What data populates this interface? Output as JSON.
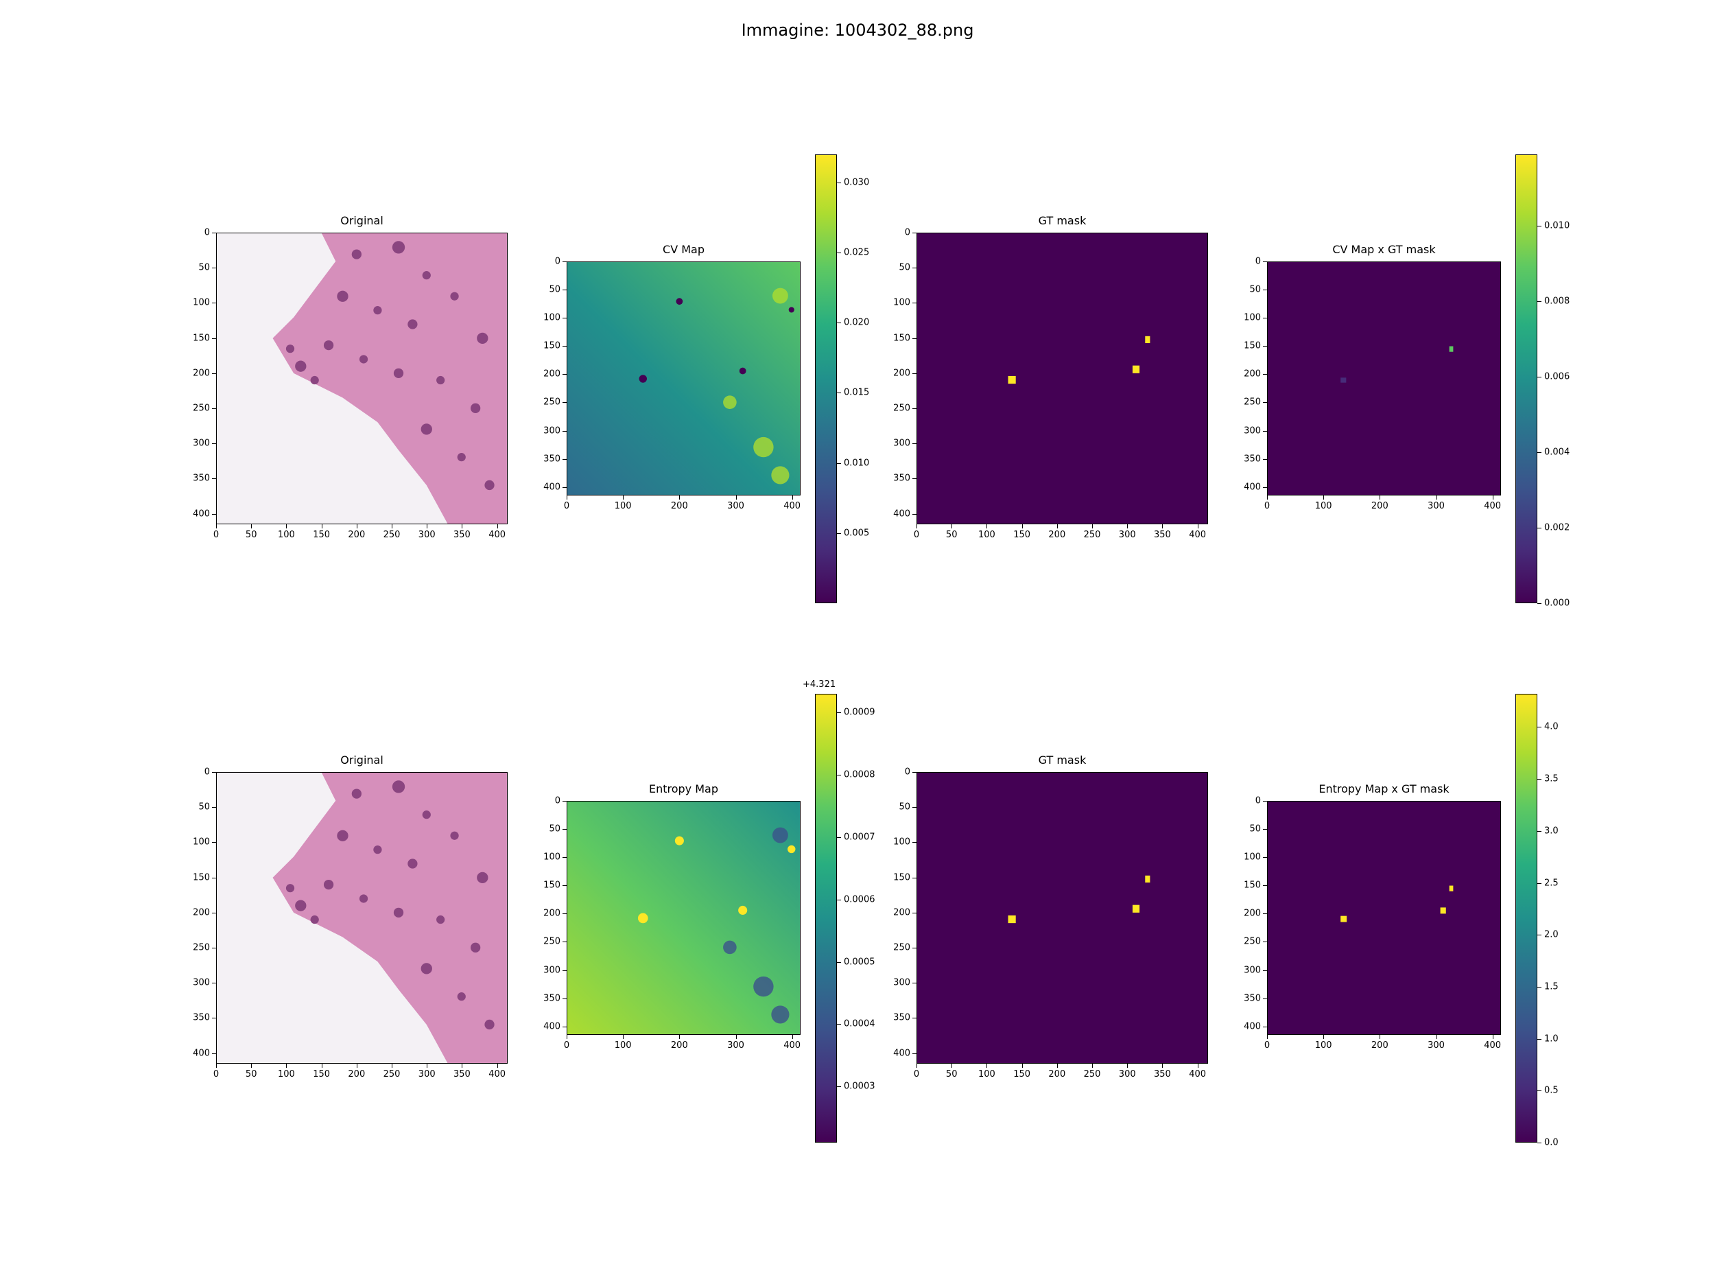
{
  "figure_title": "Immagine: 1004302_88.png",
  "colors": {
    "viridis_low": "#440154",
    "viridis_high": "#fde725"
  },
  "panels": {
    "r1c1": {
      "title": "Original"
    },
    "r1c2": {
      "title": "CV Map"
    },
    "r1c3": {
      "title": "GT mask"
    },
    "r1c4": {
      "title": "CV Map x GT mask"
    },
    "r2c1": {
      "title": "Original"
    },
    "r2c2": {
      "title": "Entropy Map"
    },
    "r2c3": {
      "title": "GT mask"
    },
    "r2c4": {
      "title": "Entropy Map x GT mask"
    }
  },
  "axis_ticks": {
    "original_x": [
      "0",
      "50",
      "100",
      "150",
      "200",
      "250",
      "300",
      "350",
      "400"
    ],
    "original_y": [
      "0",
      "50",
      "100",
      "150",
      "200",
      "250",
      "300",
      "350",
      "400"
    ],
    "map_x": [
      "0",
      "100",
      "200",
      "300",
      "400"
    ],
    "map_y": [
      "0",
      "50",
      "100",
      "150",
      "200",
      "250",
      "300",
      "350",
      "400"
    ]
  },
  "colorbars": {
    "cv": {
      "ticks": [
        "0.005",
        "0.010",
        "0.015",
        "0.020",
        "0.025",
        "0.030"
      ]
    },
    "cv_gt": {
      "ticks": [
        "0.000",
        "0.002",
        "0.004",
        "0.006",
        "0.008",
        "0.010"
      ]
    },
    "entropy": {
      "offset": "+4.321",
      "ticks": [
        "0.0003",
        "0.0004",
        "0.0005",
        "0.0006",
        "0.0007",
        "0.0008",
        "0.0009"
      ]
    },
    "entropy_gt": {
      "ticks": [
        "0.0",
        "0.5",
        "1.0",
        "1.5",
        "2.0",
        "2.5",
        "3.0",
        "3.5",
        "4.0"
      ]
    }
  },
  "chart_data": [
    {
      "type": "heatmap",
      "title": "Original",
      "xlim": [
        0,
        415
      ],
      "ylim": [
        415,
        0
      ]
    },
    {
      "type": "heatmap",
      "title": "CV Map",
      "xlim": [
        0,
        415
      ],
      "ylim": [
        415,
        0
      ],
      "colorbar_range": [
        0.0,
        0.032
      ]
    },
    {
      "type": "heatmap",
      "title": "GT mask",
      "xlim": [
        0,
        415
      ],
      "ylim": [
        415,
        0
      ],
      "highlight_regions": [
        {
          "x": 135,
          "y": 210
        },
        {
          "x": 313,
          "y": 194
        },
        {
          "x": 330,
          "y": 152
        }
      ]
    },
    {
      "type": "heatmap",
      "title": "CV Map x GT mask",
      "xlim": [
        0,
        415
      ],
      "ylim": [
        415,
        0
      ],
      "colorbar_range": [
        0.0,
        0.012
      ],
      "highlight_regions": [
        {
          "x": 328,
          "y": 157,
          "value": 0.009
        }
      ]
    },
    {
      "type": "heatmap",
      "title": "Original",
      "xlim": [
        0,
        415
      ],
      "ylim": [
        415,
        0
      ]
    },
    {
      "type": "heatmap",
      "title": "Entropy Map",
      "xlim": [
        0,
        415
      ],
      "ylim": [
        415,
        0
      ],
      "colorbar_range": [
        4.3212,
        4.32193
      ]
    },
    {
      "type": "heatmap",
      "title": "GT mask",
      "xlim": [
        0,
        415
      ],
      "ylim": [
        415,
        0
      ],
      "highlight_regions": [
        {
          "x": 135,
          "y": 210
        },
        {
          "x": 313,
          "y": 194
        },
        {
          "x": 330,
          "y": 152
        }
      ]
    },
    {
      "type": "heatmap",
      "title": "Entropy Map x GT mask",
      "xlim": [
        0,
        415
      ],
      "ylim": [
        415,
        0
      ],
      "colorbar_range": [
        0.0,
        4.32
      ],
      "highlight_regions": [
        {
          "x": 135,
          "y": 210,
          "value": 4.32
        },
        {
          "x": 313,
          "y": 194,
          "value": 4.32
        },
        {
          "x": 328,
          "y": 157,
          "value": 4.32
        }
      ]
    }
  ]
}
